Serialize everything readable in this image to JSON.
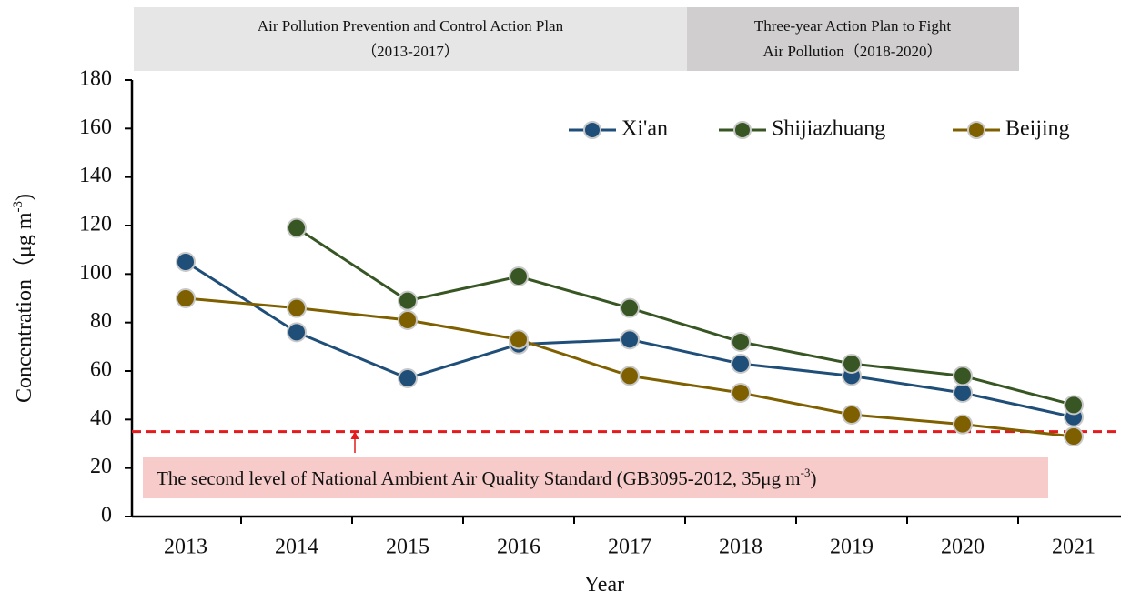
{
  "chart_data": {
    "type": "line",
    "banners": [
      {
        "lines": [
          "Air Pollution  Prevention  and Control Action  Plan",
          "（2013-2017）"
        ]
      },
      {
        "lines": [
          "Three-year  Action  Plan to Fight",
          "Air Pollution（2018-2020）"
        ]
      }
    ],
    "x_label": "Year",
    "y_label": {
      "text": "Concentration（μg m",
      "superscript": "-3",
      "suffix": ")"
    },
    "categories": [
      "2013",
      "2014",
      "2015",
      "2016",
      "2017",
      "2018",
      "2019",
      "2020",
      "2021"
    ],
    "series": [
      {
        "name": "Xi'an",
        "color": "#1f4e79",
        "values": [
          105,
          76,
          57,
          71,
          73,
          63,
          58,
          51,
          41
        ]
      },
      {
        "name": "Shijiazhuang",
        "color": "#375623",
        "values": [
          null,
          119,
          89,
          99,
          86,
          72,
          63,
          58,
          46
        ]
      },
      {
        "name": "Beijing",
        "color": "#7f6000",
        "values": [
          90,
          86,
          81,
          73,
          58,
          51,
          42,
          38,
          33
        ]
      }
    ],
    "ylim": [
      0,
      180
    ],
    "yticks": [
      0,
      20,
      40,
      60,
      80,
      100,
      120,
      140,
      160,
      180
    ],
    "reference_line": {
      "value": 35,
      "color": "#e41a1c"
    },
    "annotation": {
      "text": "The second level of National Ambient Air Quality Standard (GB3095-2012, 35μg m",
      "superscript": "-3",
      "suffix": ")"
    },
    "legend": "top-right"
  }
}
